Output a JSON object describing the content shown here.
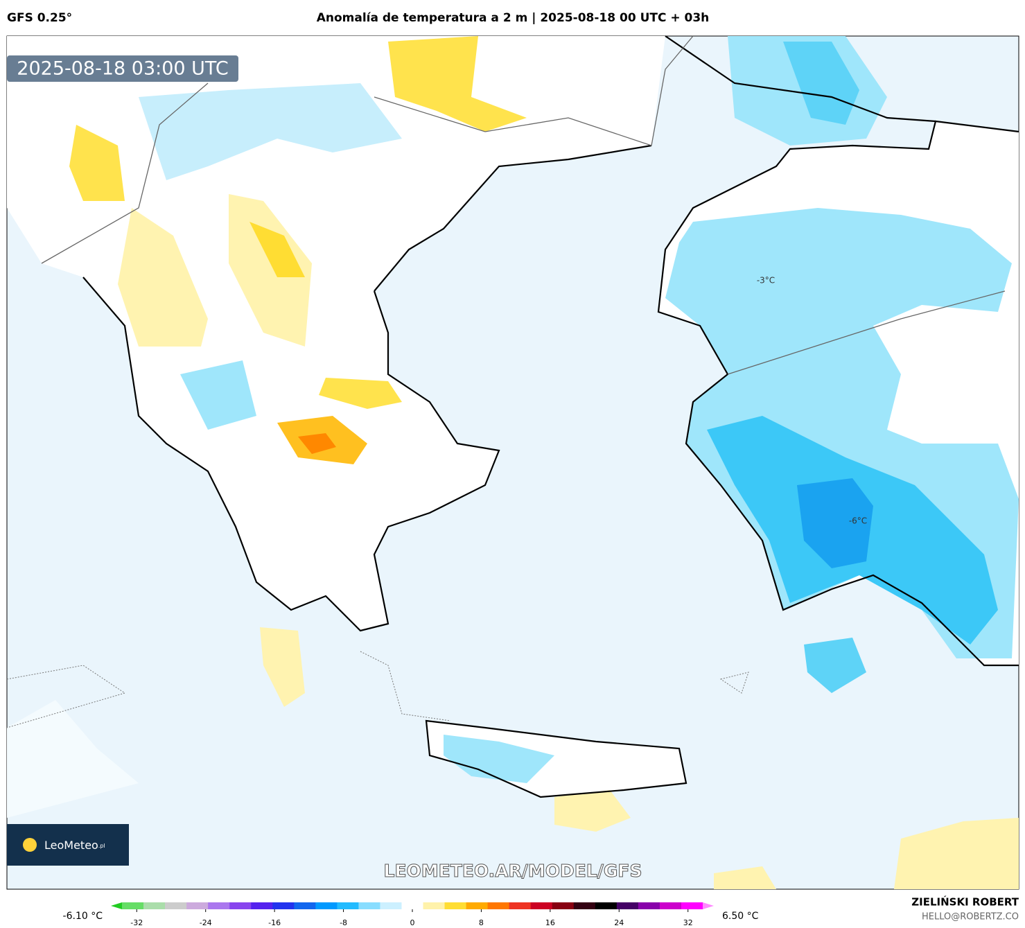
{
  "header": {
    "model": "GFS 0.25°",
    "title": "Anomalía de temperatura a 2 m | 2025-08-18 00 UTC + 03h"
  },
  "map": {
    "timestamp": "2025-08-18 03:00 UTC",
    "contour_labels": [
      "-3°C",
      "-6°C"
    ],
    "logo": "LeoMeteo",
    "logo_suffix": ".pl",
    "watermark": "LEOMETEO.AR/MODEL/GFS"
  },
  "colorbar": {
    "min_label": "-6.10 °C",
    "max_label": "6.50 °C",
    "lim": [
      -35,
      35
    ],
    "ticks": [
      -32,
      -24,
      -16,
      -8,
      0,
      8,
      16,
      24,
      32
    ],
    "colors": [
      "#22cc22",
      "#66dd66",
      "#aaddaa",
      "#cccccc",
      "#ccaadd",
      "#aa77ee",
      "#8844ee",
      "#5522ee",
      "#2233ee",
      "#1166ee",
      "#0099ff",
      "#22bbff",
      "#88ddff",
      "#ccf0ff",
      "#ffffff",
      "#fff2aa",
      "#ffdd33",
      "#ffaa00",
      "#ff7700",
      "#ee3322",
      "#cc0022",
      "#880011",
      "#330011",
      "#000000",
      "#440066",
      "#8800aa",
      "#cc00cc",
      "#ff00ff",
      "#ff88ff"
    ]
  },
  "credits": {
    "author": "ZIELIŃSKI ROBERT",
    "email": "HELLO@ROBERTZ.CO"
  }
}
